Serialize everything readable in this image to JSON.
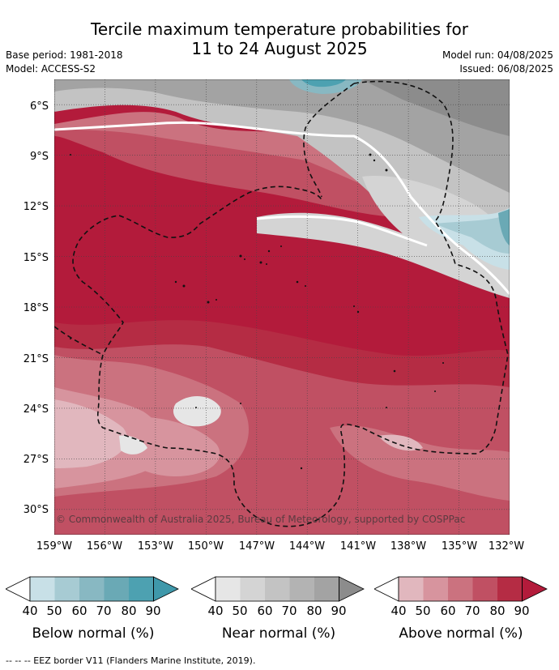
{
  "title": {
    "line1": "Tercile maximum temperature probabilities for",
    "line2": "11 to 24 August 2025"
  },
  "meta": {
    "base_period": "Base period: 1981-2018",
    "model": "Model: ACCESS-S2",
    "model_run": "Model run: 04/08/2025",
    "issued": "Issued: 06/08/2025"
  },
  "map": {
    "lat_ticks": [
      "6°S",
      "9°S",
      "12°S",
      "15°S",
      "18°S",
      "21°S",
      "24°S",
      "27°S",
      "30°S"
    ],
    "lon_ticks": [
      "159°W",
      "156°W",
      "153°W",
      "150°W",
      "147°W",
      "144°W",
      "141°W",
      "138°W",
      "135°W",
      "132°W"
    ],
    "lat_range": [
      -4.5,
      -31.5
    ],
    "lon_range": [
      -159,
      -132
    ],
    "copyright": "© Commonwealth of Australia 2025, Bureau of Meteorology, supported by COSPPac",
    "category_colors": {
      "above": [
        "#ffffff",
        "#e1b7be",
        "#d7949e",
        "#cb727f",
        "#c05063",
        "#b52c44",
        "#b31b3b"
      ],
      "near": [
        "#ffffff",
        "#e6e6e6",
        "#d4d4d4",
        "#c3c3c3",
        "#b3b3b3",
        "#a3a3a3",
        "#8c8c8c"
      ],
      "below": [
        "#ffffff",
        "#c8e0e7",
        "#a7cbd3",
        "#88b8c2",
        "#6aa9b5",
        "#4da1b1",
        "#3f98aa"
      ]
    }
  },
  "colorbars": [
    {
      "id": "below",
      "title": "Below normal (%)",
      "ticks": [
        "40",
        "50",
        "60",
        "70",
        "80",
        "90"
      ],
      "colors": [
        "#c8e0e7",
        "#a7cbd3",
        "#88b8c2",
        "#6aa9b5",
        "#4da1b1",
        "#3f98aa"
      ]
    },
    {
      "id": "near",
      "title": "Near normal (%)",
      "ticks": [
        "40",
        "50",
        "60",
        "70",
        "80",
        "90"
      ],
      "colors": [
        "#e6e6e6",
        "#d4d4d4",
        "#c3c3c3",
        "#b3b3b3",
        "#a3a3a3",
        "#8c8c8c"
      ]
    },
    {
      "id": "above",
      "title": "Above normal (%)",
      "ticks": [
        "40",
        "50",
        "60",
        "70",
        "80",
        "90"
      ],
      "colors": [
        "#e1b7be",
        "#d7949e",
        "#cb727f",
        "#c05063",
        "#b52c44",
        "#b31b3b"
      ]
    }
  ],
  "footer": "--  --  -- EEZ border V11 (Flanders Marine Institute, 2019)."
}
